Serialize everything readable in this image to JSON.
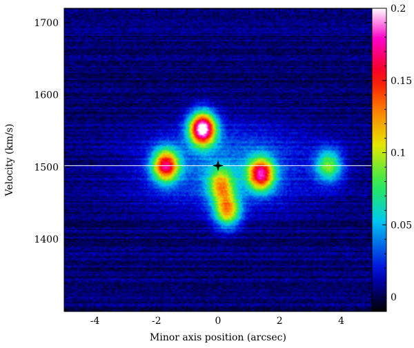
{
  "chart_data": {
    "type": "heatmap",
    "xlabel": "Minor axis position (arcsec)",
    "ylabel": "Velocity (km/s)",
    "xlim": [
      -5.0,
      5.0
    ],
    "ylim": [
      1300,
      1720
    ],
    "xticks": [
      -4,
      -2,
      0,
      2,
      4
    ],
    "yticks": [
      1400,
      1500,
      1600,
      1700
    ],
    "colorbar": {
      "range": [
        -0.01,
        0.2
      ],
      "ticks": [
        0,
        0.05,
        0.1,
        0.15,
        0.2
      ],
      "tick_labels": [
        "0",
        "0.05",
        "0.1",
        "0.15",
        "0.2"
      ],
      "colormap": "black-blue-cyan-green-yellow-red-magenta-white"
    },
    "reference_line": {
      "velocity": 1502,
      "color": "#ffffff"
    },
    "center_marker": {
      "x": 0.0,
      "y": 1502,
      "symbol": "star",
      "color": "#000000"
    },
    "emission_components": [
      {
        "x": -1.7,
        "y": 1502,
        "peak": 0.15
      },
      {
        "x": -0.5,
        "y": 1553,
        "peak": 0.2
      },
      {
        "x": 0.1,
        "y": 1475,
        "peak": 0.09
      },
      {
        "x": 0.3,
        "y": 1440,
        "peak": 0.11
      },
      {
        "x": 1.4,
        "y": 1490,
        "peak": 0.15
      },
      {
        "x": 3.6,
        "y": 1502,
        "peak": 0.08
      }
    ],
    "background_level": 0.005
  }
}
